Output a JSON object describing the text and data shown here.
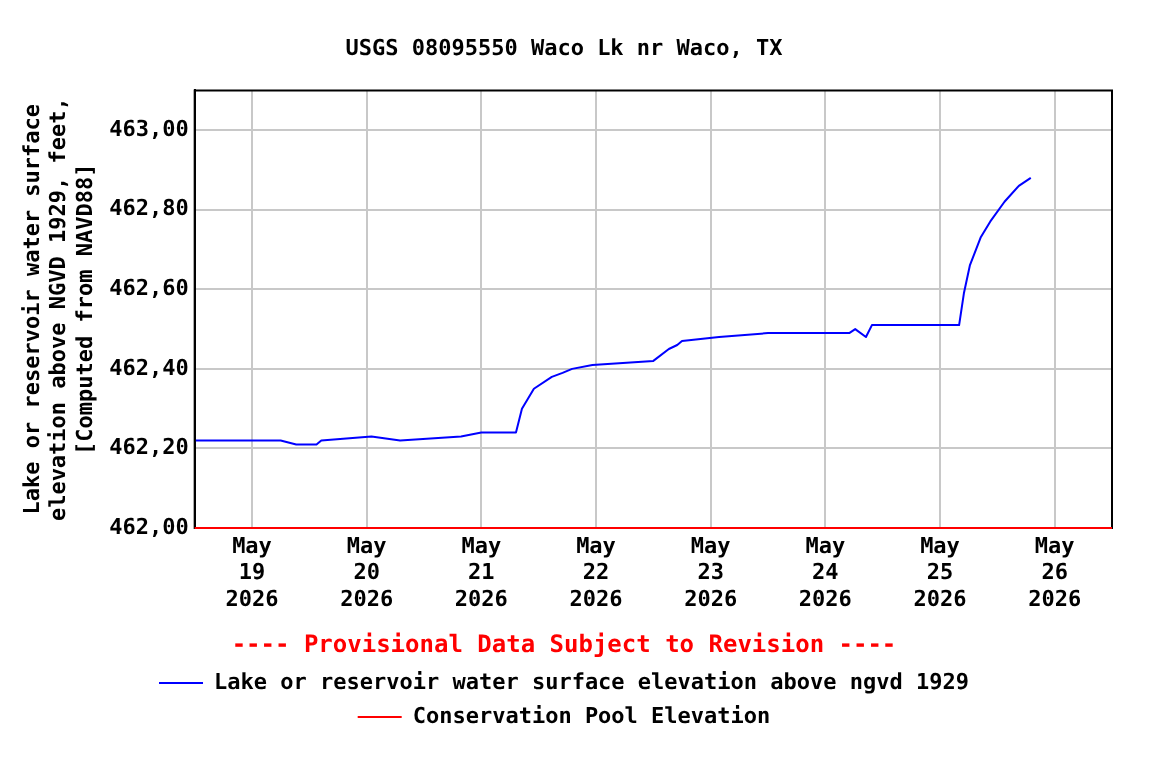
{
  "chart_data": {
    "type": "line",
    "title": "USGS 08095550 Waco Lk nr Waco, TX",
    "ylabel": "Lake or reservoir water surface\nelevation above NGVD 1929, feet,\n[Computed from NAVD88]",
    "annotations": [
      "---- Provisional Data Subject to Revision ----"
    ],
    "xlim": [
      "2026-05-18T12:00",
      "2026-05-26T12:00"
    ],
    "xticks": [
      {
        "value": "2026-05-19",
        "label": "May 19 2026"
      },
      {
        "value": "2026-05-20",
        "label": "May 20 2026"
      },
      {
        "value": "2026-05-21",
        "label": "May 21 2026"
      },
      {
        "value": "2026-05-22",
        "label": "May 22 2026"
      },
      {
        "value": "2026-05-23",
        "label": "May 23 2026"
      },
      {
        "value": "2026-05-24",
        "label": "May 24 2026"
      },
      {
        "value": "2026-05-25",
        "label": "May 25 2026"
      },
      {
        "value": "2026-05-26",
        "label": "May 26 2026"
      }
    ],
    "ylim": [
      462.0,
      463.1
    ],
    "yticks": [
      {
        "value": 462.0,
        "label": "462,00"
      },
      {
        "value": 462.2,
        "label": "462,20"
      },
      {
        "value": 462.4,
        "label": "462,40"
      },
      {
        "value": 462.6,
        "label": "462,60"
      },
      {
        "value": 462.8,
        "label": "462,80"
      },
      {
        "value": 463.0,
        "label": "463,00"
      }
    ],
    "grid": true,
    "legend": "bottom",
    "marker": "none",
    "line_style": "solid",
    "series": [
      {
        "name": "Lake or reservoir water surface elevation above ngvd 1929",
        "color": "#0000ff",
        "x": [
          "2026-05-18T12:15",
          "2026-05-19T06:00",
          "2026-05-19T09:15",
          "2026-05-19T13:30",
          "2026-05-19T14:30",
          "2026-05-20T01:00",
          "2026-05-20T07:00",
          "2026-05-20T19:45",
          "2026-05-21T00:00",
          "2026-05-21T07:15",
          "2026-05-21T08:30",
          "2026-05-21T11:00",
          "2026-05-21T14:45",
          "2026-05-21T17:00",
          "2026-05-21T19:00",
          "2026-05-21T23:15",
          "2026-05-22T12:00",
          "2026-05-22T15:15",
          "2026-05-22T17:00",
          "2026-05-22T18:00",
          "2026-05-23T01:45",
          "2026-05-23T12:00",
          "2026-05-24T05:00",
          "2026-05-24T06:15",
          "2026-05-24T08:30",
          "2026-05-24T09:45",
          "2026-05-25T04:00",
          "2026-05-25T05:00",
          "2026-05-25T06:15",
          "2026-05-25T08:30",
          "2026-05-25T10:30",
          "2026-05-25T13:30",
          "2026-05-25T16:30",
          "2026-05-25T19:00"
        ],
        "values": [
          462.22,
          462.22,
          462.21,
          462.21,
          462.22,
          462.23,
          462.22,
          462.23,
          462.24,
          462.24,
          462.3,
          462.35,
          462.38,
          462.39,
          462.4,
          462.41,
          462.42,
          462.45,
          462.46,
          462.47,
          462.48,
          462.49,
          462.49,
          462.5,
          462.48,
          462.51,
          462.51,
          462.59,
          462.66,
          462.73,
          462.77,
          462.82,
          462.86,
          462.88
        ]
      },
      {
        "name": "Conservation Pool Elevation",
        "color": "#ff0000",
        "x": [
          "2026-05-18T12:00",
          "2026-05-26T12:00"
        ],
        "values": [
          462.0,
          462.0
        ]
      }
    ]
  }
}
